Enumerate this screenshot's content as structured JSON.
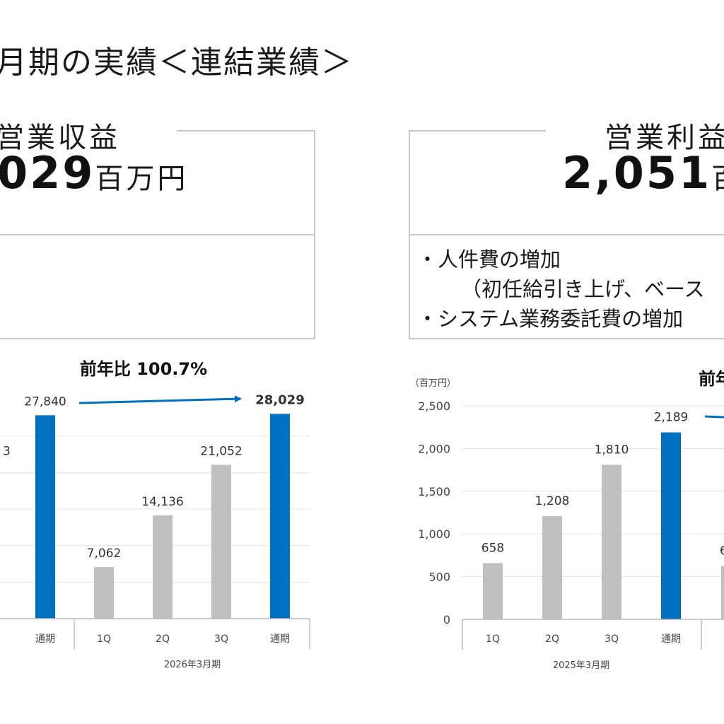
{
  "page": {
    "title": "月期の実績＜連結業績＞"
  },
  "left_panel": {
    "title": "営業収益",
    "amount": "029",
    "unit": "百万円"
  },
  "right_panel": {
    "title": "営業利益",
    "amount": "2,051",
    "unit": "百",
    "bullets": [
      "・人件費の増加",
      "（初任給引き上げ、ベース",
      "・システム業務委託費の増加"
    ]
  },
  "colors": {
    "highlight": "#0070c0",
    "regular": "#bfbfbf",
    "arrow": "#0070c0"
  },
  "chart_data": [
    {
      "type": "bar",
      "title": "",
      "ratio_label": "前年比 100.7%",
      "categories": [
        "通期",
        "1Q",
        "2Q",
        "3Q",
        "通期"
      ],
      "values": [
        27840,
        7062,
        14136,
        21052,
        28029
      ],
      "value_labels": [
        "27,840",
        "7,062",
        "14,136",
        "21,052",
        "28,029"
      ],
      "highlight": [
        true,
        false,
        false,
        false,
        true
      ],
      "bold_labels": [
        false,
        false,
        false,
        false,
        true
      ],
      "partial_label": "3",
      "group_label": "2026年3月期",
      "ylim": [
        0,
        30000
      ]
    },
    {
      "type": "bar",
      "title": "",
      "unit_label": "（百万円）",
      "ratio_label_partial": "前年",
      "categories": [
        "1Q",
        "2Q",
        "3Q",
        "通期"
      ],
      "values": [
        658,
        1208,
        1810,
        2189
      ],
      "value_labels": [
        "658",
        "1,208",
        "1,810",
        "2,189"
      ],
      "highlight": [
        false,
        false,
        false,
        true
      ],
      "next_partial_label": "6",
      "group_label": "2025年3月期",
      "yticks": [
        "0",
        "500",
        "1,000",
        "1,500",
        "2,000",
        "2,500"
      ],
      "ytick_values": [
        0,
        500,
        1000,
        1500,
        2000,
        2500
      ],
      "ylim": [
        0,
        2500
      ]
    }
  ]
}
